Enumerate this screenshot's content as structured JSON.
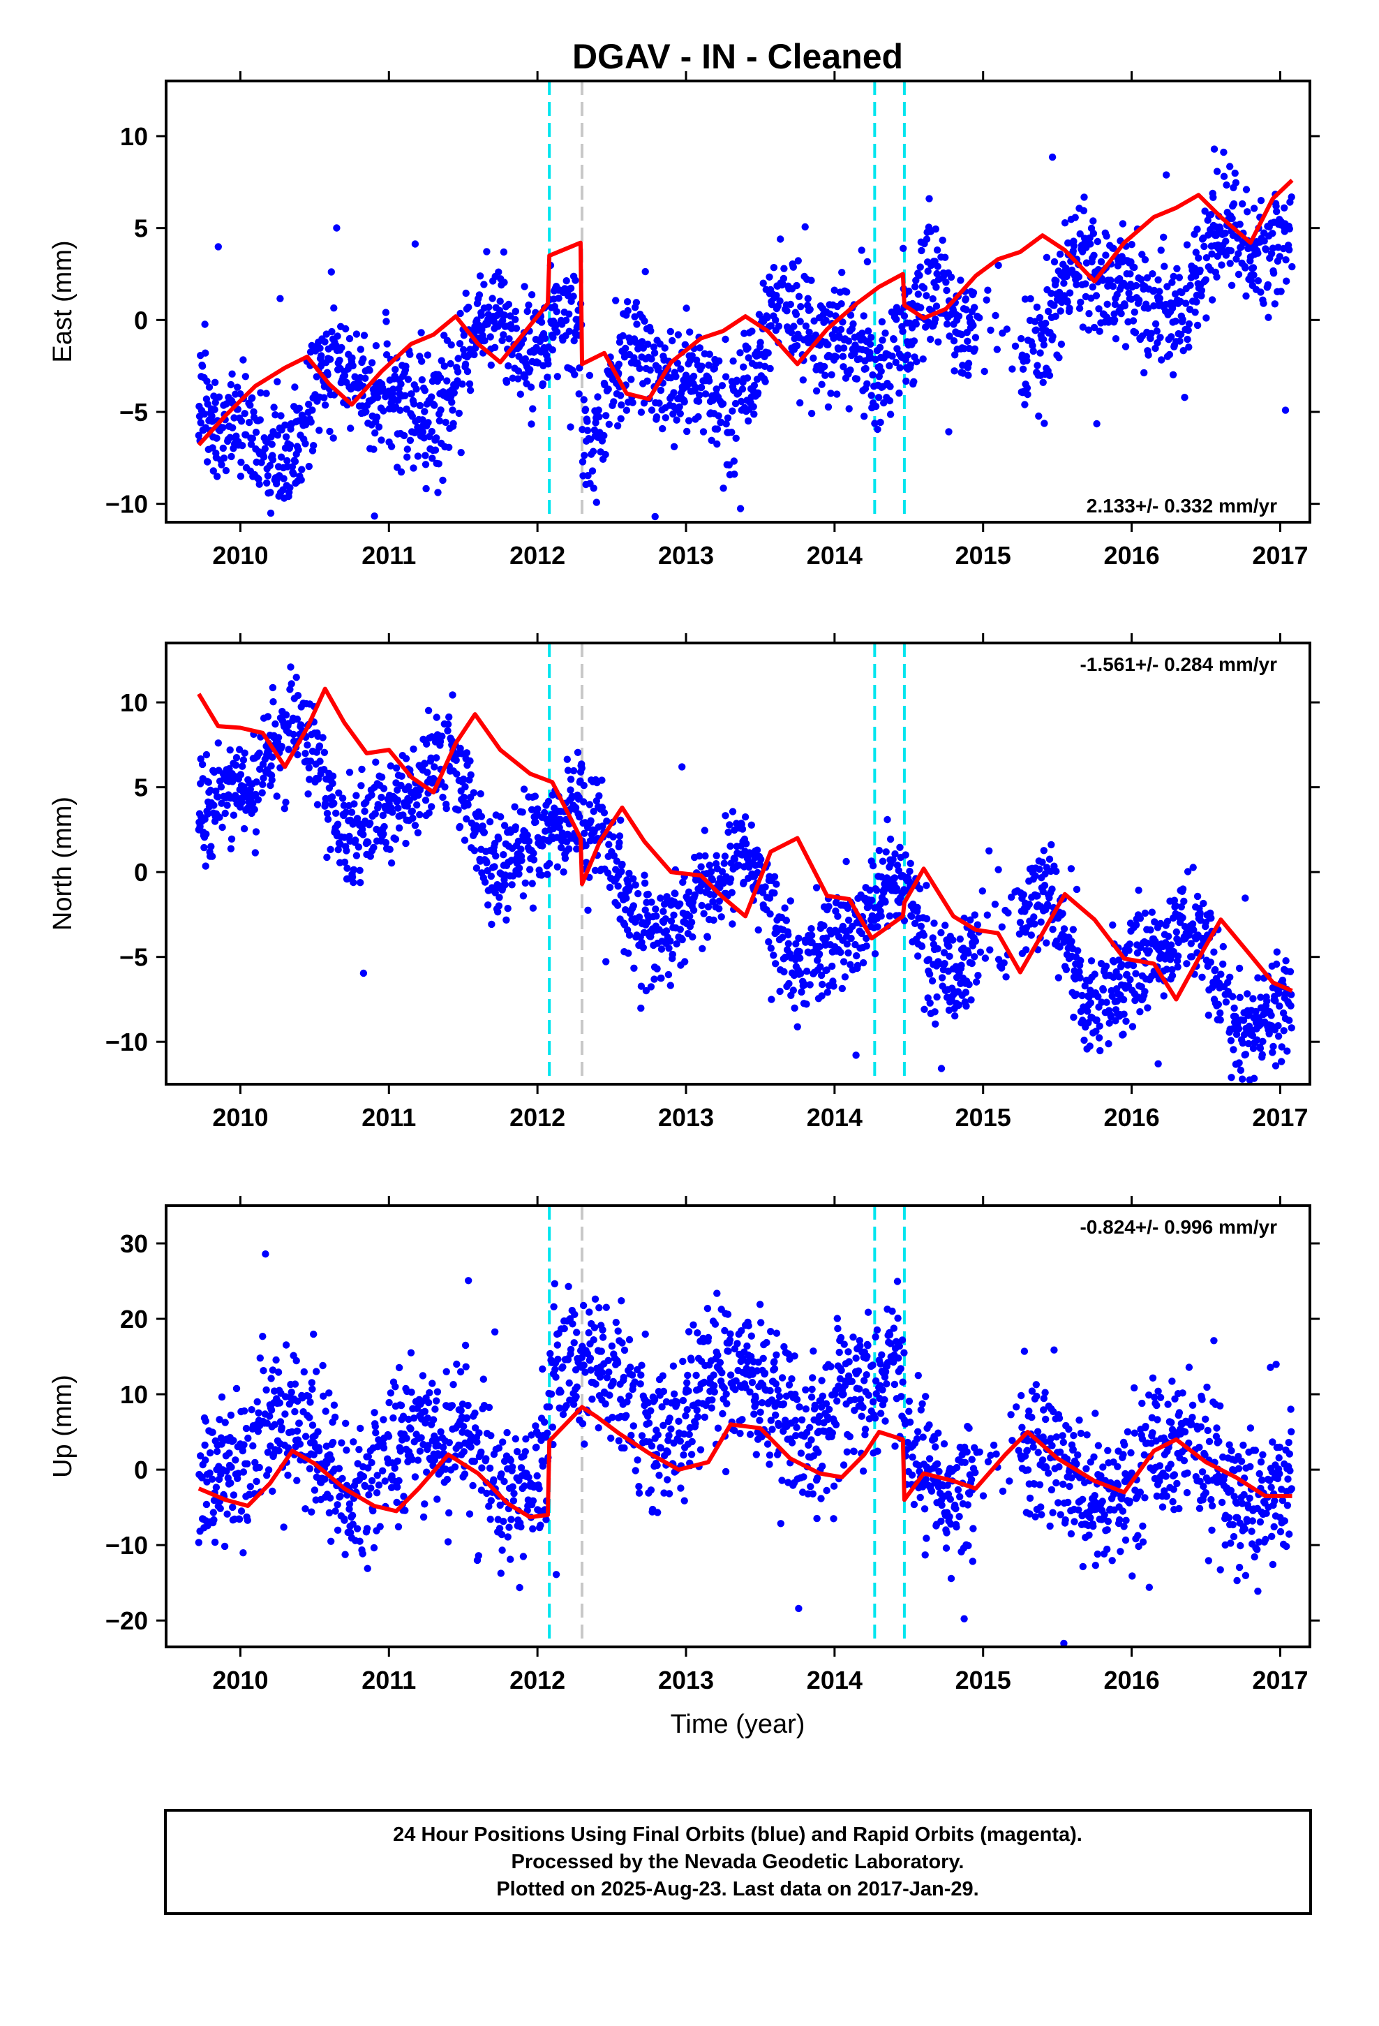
{
  "title": "DGAV  - IN - Cleaned",
  "xlabel": "Time (year)",
  "footer": {
    "line1": "24 Hour Positions Using Final Orbits (blue) and Rapid Orbits (magenta).",
    "line2": "Processed by the Nevada Geodetic Laboratory.",
    "line3": "Plotted on 2025-Aug-23. Last data on 2017-Jan-29."
  },
  "colors": {
    "points": "#0000ff",
    "fit": "#ff0000",
    "offset_equipment": "#00e5ee",
    "offset_other": "#c8c8c8"
  },
  "chart_data": [
    {
      "type": "scatter",
      "component": "east",
      "ylabel": "East (mm)",
      "rate_label": "2.133+/- 0.332 mm/yr",
      "rate_position": "bottom-right",
      "xlim": [
        2009.5,
        2017.2
      ],
      "ylim": [
        -11,
        13
      ],
      "xticks": [
        2010,
        2011,
        2012,
        2013,
        2014,
        2015,
        2016,
        2017
      ],
      "yticks": [
        -10,
        -5,
        0,
        5,
        10
      ],
      "offsets_cyan": [
        2012.08,
        2014.27,
        2014.47
      ],
      "offsets_gray": [
        2012.3
      ],
      "model": {
        "start": 2009.72,
        "end": 2017.08,
        "rate": 2.133,
        "intercept": -0.6,
        "sin1": -1.9,
        "cos1": -0.4,
        "sin2": 0.9,
        "cos2": 0.3,
        "scatter": 1.6,
        "steps": [
          {
            "t": 2012.08,
            "dy": 2.6
          },
          {
            "t": 2012.3,
            "dy": -6.3
          },
          {
            "t": 2014.47,
            "dy": -1.5
          }
        ]
      },
      "fit": {
        "x": [
          2009.72,
          2009.9,
          2010.1,
          2010.3,
          2010.45,
          2010.6,
          2010.75,
          2010.95,
          2011.15,
          2011.3,
          2011.45,
          2011.6,
          2011.75,
          2011.9,
          2012.07,
          2012.08,
          2012.29,
          2012.3,
          2012.45,
          2012.6,
          2012.75,
          2012.9,
          2013.1,
          2013.25,
          2013.4,
          2013.55,
          2013.75,
          2013.95,
          2014.15,
          2014.3,
          2014.46,
          2014.47,
          2014.6,
          2014.75,
          2014.95,
          2015.1,
          2015.25,
          2015.4,
          2015.55,
          2015.75,
          2015.95,
          2016.15,
          2016.3,
          2016.45,
          2016.6,
          2016.8,
          2016.95,
          2017.08
        ],
        "y": [
          -6.8,
          -5.2,
          -3.6,
          -2.6,
          -2.0,
          -3.5,
          -4.6,
          -2.8,
          -1.3,
          -0.8,
          0.2,
          -1.3,
          -2.3,
          -0.8,
          0.9,
          3.5,
          4.2,
          -2.4,
          -1.8,
          -4.0,
          -4.3,
          -2.3,
          -1.0,
          -0.6,
          0.2,
          -0.6,
          -2.4,
          -0.5,
          0.9,
          1.8,
          2.5,
          0.8,
          0.1,
          0.6,
          2.4,
          3.3,
          3.7,
          4.6,
          3.8,
          2.1,
          4.2,
          5.6,
          6.1,
          6.8,
          5.6,
          4.2,
          6.6,
          7.6
        ]
      }
    },
    {
      "type": "scatter",
      "component": "north",
      "ylabel": "North (mm)",
      "rate_label": "-1.561+/- 0.284 mm/yr",
      "rate_position": "top-right",
      "xlim": [
        2009.5,
        2017.2
      ],
      "ylim": [
        -12.5,
        13.5
      ],
      "xticks": [
        2010,
        2011,
        2012,
        2013,
        2014,
        2015,
        2016,
        2017
      ],
      "yticks": [
        -10,
        -5,
        0,
        5,
        10
      ],
      "offsets_cyan": [
        2012.08,
        2014.27,
        2014.47
      ],
      "offsets_gray": [
        2012.3
      ],
      "model": {
        "start": 2009.72,
        "end": 2017.08,
        "rate": -1.561,
        "intercept": 2.0,
        "sin1": 2.2,
        "cos1": -1.3,
        "sin2": -0.7,
        "cos2": 0.6,
        "scatter": 1.5,
        "steps": [
          {
            "t": 2012.3,
            "dy": -2.8
          },
          {
            "t": 2014.47,
            "dy": 0.8
          }
        ]
      },
      "fit": {
        "x": [
          2009.72,
          2009.85,
          2010.0,
          2010.15,
          2010.3,
          2010.45,
          2010.57,
          2010.7,
          2010.85,
          2011.0,
          2011.15,
          2011.3,
          2011.45,
          2011.58,
          2011.75,
          2011.95,
          2012.1,
          2012.29,
          2012.3,
          2012.42,
          2012.57,
          2012.72,
          2012.9,
          2013.1,
          2013.25,
          2013.4,
          2013.57,
          2013.75,
          2013.95,
          2014.1,
          2014.25,
          2014.46,
          2014.47,
          2014.6,
          2014.8,
          2014.95,
          2015.1,
          2015.25,
          2015.4,
          2015.55,
          2015.75,
          2015.95,
          2016.15,
          2016.3,
          2016.45,
          2016.6,
          2016.8,
          2016.95,
          2017.08
        ],
        "y": [
          10.5,
          8.6,
          8.5,
          8.2,
          6.2,
          8.5,
          10.8,
          8.8,
          7.0,
          7.2,
          5.6,
          4.7,
          7.6,
          9.3,
          7.2,
          5.8,
          5.3,
          2.0,
          -0.7,
          1.8,
          3.8,
          1.8,
          0.0,
          -0.2,
          -1.5,
          -2.6,
          1.2,
          2.0,
          -1.4,
          -1.6,
          -3.9,
          -2.6,
          -1.8,
          0.2,
          -2.6,
          -3.4,
          -3.6,
          -5.9,
          -3.6,
          -1.3,
          -2.8,
          -5.1,
          -5.4,
          -7.5,
          -5.1,
          -2.8,
          -4.9,
          -6.5,
          -7.0
        ]
      }
    },
    {
      "type": "scatter",
      "component": "up",
      "ylabel": "Up (mm)",
      "rate_label": "-0.824+/- 0.996 mm/yr",
      "rate_position": "top-right",
      "xlim": [
        2009.5,
        2017.2
      ],
      "ylim": [
        -23.5,
        35
      ],
      "xticks": [
        2010,
        2011,
        2012,
        2013,
        2014,
        2015,
        2016,
        2017
      ],
      "yticks": [
        -20,
        -10,
        0,
        10,
        20,
        30
      ],
      "offsets_cyan": [
        2012.08,
        2014.27,
        2014.47
      ],
      "offsets_gray": [
        2012.3
      ],
      "model": {
        "start": 2009.72,
        "end": 2017.08,
        "rate": -0.824,
        "intercept": 0.5,
        "sin1": 3.8,
        "cos1": -1.5,
        "sin2": 0.6,
        "cos2": 0.4,
        "scatter": 4.8,
        "steps": [
          {
            "t": 2012.08,
            "dy": 9.5
          },
          {
            "t": 2014.47,
            "dy": -7.5
          }
        ]
      },
      "fit": {
        "x": [
          2009.72,
          2009.9,
          2010.05,
          2010.2,
          2010.35,
          2010.5,
          2010.7,
          2010.9,
          2011.05,
          2011.2,
          2011.4,
          2011.6,
          2011.8,
          2011.95,
          2012.07,
          2012.08,
          2012.3,
          2012.4,
          2012.55,
          2012.75,
          2012.95,
          2013.15,
          2013.3,
          2013.5,
          2013.7,
          2013.9,
          2014.05,
          2014.2,
          2014.3,
          2014.46,
          2014.47,
          2014.6,
          2014.8,
          2014.95,
          2015.15,
          2015.3,
          2015.5,
          2015.75,
          2015.95,
          2016.15,
          2016.3,
          2016.5,
          2016.7,
          2016.9,
          2017.08
        ],
        "y": [
          -2.5,
          -4.0,
          -4.8,
          -1.8,
          2.5,
          0.8,
          -2.5,
          -4.8,
          -5.5,
          -2.5,
          2.0,
          -0.5,
          -4.5,
          -6.3,
          -6.0,
          3.8,
          8.3,
          7.0,
          4.8,
          2.2,
          0.0,
          1.0,
          6.0,
          5.5,
          1.5,
          -0.5,
          -1.0,
          2.0,
          5.0,
          4.0,
          -4.0,
          -0.5,
          -1.5,
          -2.5,
          2.0,
          5.0,
          1.5,
          -1.5,
          -3.0,
          2.5,
          4.0,
          1.0,
          -1.0,
          -3.5,
          -3.5
        ]
      }
    }
  ]
}
